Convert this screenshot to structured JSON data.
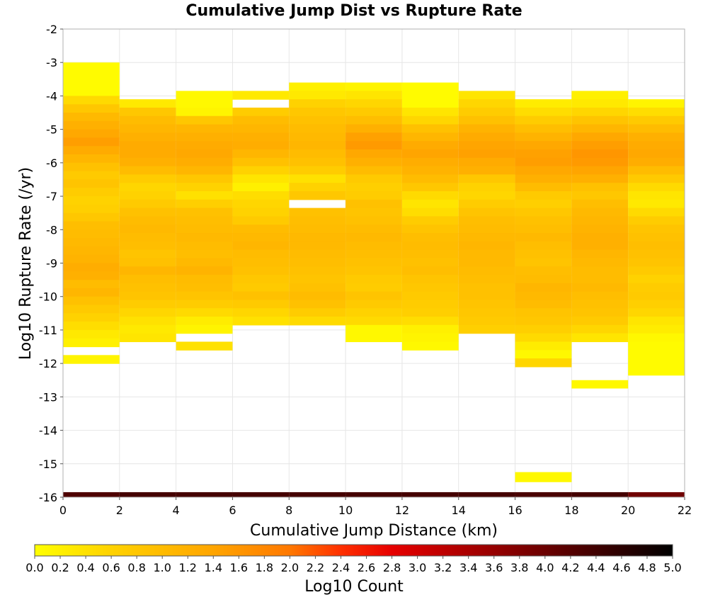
{
  "chart_data": {
    "type": "heatmap",
    "title": "Cumulative Jump Dist vs Rupture Rate",
    "xlabel": "Cumulative Jump Distance (km)",
    "ylabel": "Log10 Rupture Rate (/yr)",
    "colorbar_label": "Log10 Count",
    "xlim": [
      0,
      22
    ],
    "ylim": [
      -16,
      -2
    ],
    "x_ticks": [
      0,
      2,
      4,
      6,
      8,
      10,
      12,
      14,
      16,
      18,
      20,
      22
    ],
    "y_ticks": [
      -2,
      -3,
      -4,
      -5,
      -6,
      -7,
      -8,
      -9,
      -10,
      -11,
      -12,
      -13,
      -14,
      -15,
      -16
    ],
    "colorbar_ticks": [
      "0.0",
      "0.2",
      "0.4",
      "0.6",
      "0.8",
      "1.0",
      "1.2",
      "1.4",
      "1.6",
      "1.8",
      "2.0",
      "2.2",
      "2.4",
      "2.6",
      "2.8",
      "3.0",
      "3.2",
      "3.4",
      "3.6",
      "3.8",
      "4.0",
      "4.2",
      "4.4",
      "4.6",
      "4.8",
      "5.0"
    ],
    "colorbar_range": [
      0,
      5
    ],
    "colormap_stops": [
      [
        0.0,
        "#ffff00"
      ],
      [
        0.12,
        "#ffd200"
      ],
      [
        0.28,
        "#ffa500"
      ],
      [
        0.4,
        "#ff7800"
      ],
      [
        0.48,
        "#ff3000"
      ],
      [
        0.56,
        "#e60000"
      ],
      [
        0.72,
        "#960000"
      ],
      [
        0.86,
        "#4a0000"
      ],
      [
        1.0,
        "#000000"
      ]
    ],
    "grid": true,
    "x_bin_width": 2,
    "y_bin_height": 0.25,
    "x_bins": [
      1,
      3,
      5,
      7,
      9,
      11,
      13,
      15,
      17,
      19,
      21
    ],
    "columns": [
      {
        "x_start": 0,
        "y_top": -3.0,
        "values": [
          0.05,
          0.05,
          0.05,
          0.05,
          0.5,
          0.8,
          1.05,
          1.2,
          1.35,
          1.5,
          1.3,
          1.1,
          0.9,
          0.75,
          0.85,
          0.7,
          0.6,
          0.65,
          0.8,
          0.95,
          1.0,
          1.05,
          1.1,
          1.15,
          1.25,
          1.2,
          1.0,
          1.1,
          0.9,
          0.75,
          0.6,
          0.45,
          0.3,
          0.2,
          null,
          0.15
        ]
      },
      {
        "x_start": 2,
        "y_top": -4.1,
        "values": [
          0.3,
          0.8,
          1.0,
          1.1,
          1.2,
          1.3,
          1.3,
          1.2,
          1.0,
          0.7,
          0.55,
          0.6,
          0.75,
          0.9,
          1.0,
          1.05,
          1.0,
          0.95,
          0.85,
          0.9,
          1.1,
          0.95,
          0.9,
          0.85,
          0.7,
          0.55,
          0.4,
          0.3,
          0.35
        ]
      },
      {
        "x_start": 4,
        "y_top": -3.85,
        "values": [
          0.1,
          0.1,
          0.15,
          0.8,
          1.1,
          1.2,
          1.3,
          1.35,
          1.25,
          1.1,
          0.8,
          0.6,
          0.4,
          0.65,
          0.9,
          0.95,
          1.0,
          1.05,
          1.0,
          0.95,
          1.05,
          1.15,
          1.0,
          0.95,
          0.85,
          0.7,
          0.5,
          0.25,
          0.15,
          null,
          0.4
        ]
      },
      {
        "x_start": 6,
        "y_top": -3.85,
        "values": [
          0.3,
          null,
          0.7,
          1.0,
          1.1,
          1.2,
          1.25,
          1.1,
          0.9,
          0.6,
          0.35,
          0.2,
          0.45,
          0.55,
          0.6,
          0.75,
          1.0,
          1.05,
          1.1,
          1.0,
          0.95,
          0.9,
          0.8,
          0.75,
          0.9,
          0.75,
          0.55,
          0.4
        ]
      },
      {
        "x_start": 8,
        "y_top": -3.6,
        "values": [
          0.2,
          0.3,
          0.6,
          0.8,
          0.9,
          1.0,
          1.05,
          1.1,
          1.0,
          0.9,
          0.7,
          0.4,
          0.6,
          0.8,
          null,
          0.9,
          0.95,
          1.0,
          1.05,
          1.05,
          1.0,
          0.95,
          0.9,
          0.85,
          0.9,
          1.0,
          0.9,
          0.7,
          0.5
        ]
      },
      {
        "x_start": 10,
        "y_top": -3.6,
        "values": [
          0.15,
          0.35,
          0.55,
          0.75,
          0.95,
          1.2,
          1.45,
          1.55,
          1.35,
          1.2,
          1.0,
          0.75,
          0.65,
          0.7,
          0.9,
          0.85,
          0.9,
          1.0,
          1.05,
          1.0,
          0.95,
          0.9,
          0.85,
          0.75,
          0.7,
          0.85,
          0.75,
          0.6,
          0.5,
          0.1,
          0.1
        ]
      },
      {
        "x_start": 12,
        "y_top": -3.6,
        "values": [
          0.05,
          0.05,
          0.05,
          0.35,
          0.55,
          0.9,
          1.1,
          1.3,
          1.4,
          1.25,
          1.15,
          1.0,
          0.8,
          0.5,
          0.35,
          0.45,
          0.7,
          0.85,
          0.95,
          1.0,
          0.95,
          0.9,
          0.95,
          0.85,
          0.8,
          0.75,
          0.7,
          0.65,
          0.45,
          0.2,
          0.15,
          0.1
        ]
      },
      {
        "x_start": 14,
        "y_top": -3.85,
        "values": [
          0.35,
          0.55,
          0.7,
          0.9,
          1.15,
          1.3,
          1.4,
          1.45,
          1.3,
          1.2,
          0.8,
          0.6,
          0.55,
          0.7,
          0.85,
          0.95,
          1.0,
          1.05,
          1.1,
          1.05,
          1.05,
          1.0,
          0.95,
          0.9,
          0.9,
          0.85,
          0.8,
          0.75,
          0.65
        ]
      },
      {
        "x_start": 16,
        "y_top": -4.1,
        "values": [
          0.25,
          0.45,
          0.7,
          0.95,
          1.15,
          1.35,
          1.45,
          1.5,
          1.35,
          1.2,
          1.0,
          0.75,
          0.65,
          0.8,
          0.9,
          0.95,
          1.05,
          0.95,
          0.9,
          0.85,
          0.95,
          1.0,
          1.1,
          1.05,
          1.0,
          0.85,
          0.8,
          0.65,
          0.5,
          0.25,
          0.1,
          0.55
        ]
      },
      {
        "x_start": 18,
        "y_top": -3.85,
        "values": [
          0.2,
          0.3,
          0.55,
          0.85,
          1.1,
          1.35,
          1.5,
          1.6,
          1.55,
          1.4,
          1.2,
          0.9,
          0.8,
          0.95,
          1.05,
          1.1,
          1.15,
          1.2,
          1.2,
          1.1,
          1.05,
          1.0,
          1.0,
          1.05,
          0.95,
          0.9,
          0.85,
          0.75,
          0.55,
          0.35
        ]
      },
      {
        "x_start": 20,
        "y_top": -4.1,
        "values": [
          0.15,
          0.45,
          0.75,
          1.0,
          1.2,
          1.3,
          1.35,
          1.25,
          1.0,
          0.75,
          0.5,
          0.35,
          0.3,
          0.5,
          0.7,
          0.85,
          0.9,
          0.95,
          0.9,
          0.85,
          0.75,
          0.6,
          0.7,
          0.75,
          0.65,
          0.55,
          0.35,
          0.25,
          0.1,
          0.05,
          0.05,
          0.05,
          0.05
        ]
      }
    ],
    "extra_cells": [
      {
        "x": 19,
        "y_top": -12.5,
        "y_bottom": -12.75,
        "value": 0.1
      },
      {
        "x": 17,
        "y_top": -15.25,
        "y_bottom": -15.55,
        "value": 0.1
      }
    ],
    "bottom_strip": {
      "y_top": -15.85,
      "y_bottom": -16.0,
      "values": [
        4.25,
        4.35,
        4.35,
        4.35,
        4.35,
        4.35,
        4.35,
        4.35,
        4.3,
        4.35,
        3.95
      ]
    }
  }
}
